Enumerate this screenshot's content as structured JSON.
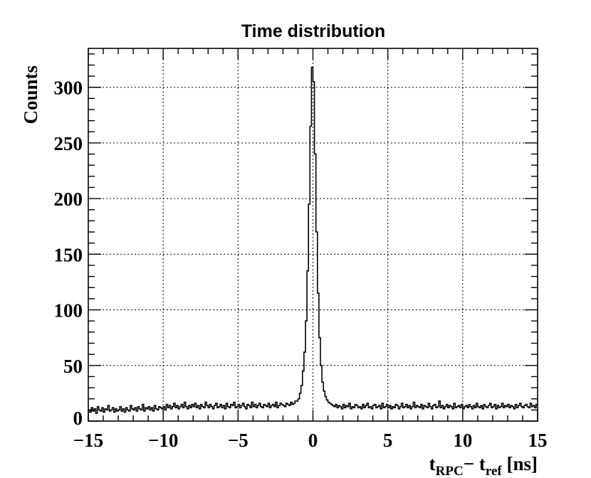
{
  "chart_data": {
    "type": "histogram",
    "title": "Time distribution",
    "xlabel": {
      "main": "t",
      "sub1": "RPC",
      "minus": "− t",
      "sub2": "ref",
      "unit": " [ns]"
    },
    "ylabel": "Counts",
    "xlim": [
      -15,
      15
    ],
    "ylim": [
      0,
      335
    ],
    "bin_width": 0.1,
    "grid": true,
    "x_ticks": [
      "−15",
      "−10",
      "−5",
      "0",
      "5",
      "10",
      "15"
    ],
    "x_tick_values": [
      -15,
      -10,
      -5,
      0,
      5,
      10,
      15
    ],
    "y_ticks": [
      "0",
      "50",
      "100",
      "150",
      "200",
      "250",
      "300"
    ],
    "y_tick_values": [
      0,
      50,
      100,
      150,
      200,
      250,
      300
    ],
    "line_color": "#000000",
    "counts": [
      10,
      8,
      12,
      9,
      11,
      7,
      13,
      10,
      9,
      12,
      8,
      11,
      10,
      14,
      9,
      10,
      12,
      8,
      11,
      9,
      10,
      13,
      9,
      11,
      8,
      12,
      10,
      9,
      14,
      11,
      10,
      12,
      9,
      13,
      11,
      10,
      15,
      9,
      12,
      11,
      13,
      10,
      12,
      9,
      14,
      11,
      10,
      13,
      12,
      11,
      13,
      10,
      15,
      12,
      14,
      11,
      13,
      16,
      12,
      14,
      11,
      13,
      15,
      12,
      17,
      13,
      11,
      14,
      12,
      15,
      13,
      16,
      12,
      14,
      11,
      15,
      13,
      12,
      17,
      14,
      12,
      15,
      13,
      11,
      14,
      16,
      12,
      13,
      15,
      12,
      14,
      11,
      16,
      13,
      12,
      15,
      14,
      17,
      12,
      13,
      15,
      12,
      14,
      16,
      13,
      11,
      15,
      14,
      12,
      17,
      13,
      15,
      12,
      14,
      16,
      13,
      12,
      15,
      14,
      13,
      16,
      12,
      14,
      15,
      13,
      17,
      12,
      14,
      16,
      15,
      14,
      13,
      16,
      15,
      14,
      17,
      15,
      16,
      18,
      18,
      20,
      25,
      32,
      45,
      62,
      90,
      135,
      195,
      265,
      318,
      305,
      240,
      170,
      115,
      75,
      50,
      35,
      27,
      22,
      19,
      17,
      16,
      15,
      14,
      13,
      15,
      12,
      14,
      13,
      11,
      15,
      12,
      14,
      13,
      16,
      11,
      13,
      12,
      15,
      14,
      12,
      13,
      11,
      15,
      12,
      14,
      16,
      12,
      13,
      11,
      14,
      15,
      12,
      13,
      14,
      11,
      16,
      12,
      13,
      15,
      12,
      14,
      11,
      13,
      12,
      15,
      14,
      11,
      13,
      16,
      12,
      13,
      15,
      12,
      14,
      11,
      13,
      17,
      12,
      14,
      13,
      12,
      15,
      11,
      14,
      13,
      12,
      16,
      13,
      11,
      14,
      15,
      12,
      13,
      18,
      12,
      14,
      11,
      13,
      15,
      12,
      14,
      13,
      11,
      16,
      12,
      13,
      14,
      12,
      15,
      11,
      13,
      14,
      12,
      15,
      13,
      11,
      14,
      12,
      16,
      13,
      12,
      14,
      11,
      15,
      13,
      12,
      14,
      16,
      12,
      13,
      15,
      11,
      14,
      12,
      13,
      16,
      12,
      14,
      13,
      15,
      12,
      14,
      13,
      11,
      15,
      12,
      14,
      16,
      13,
      12,
      14,
      15,
      13,
      12,
      16,
      13,
      14,
      12,
      15
    ]
  }
}
